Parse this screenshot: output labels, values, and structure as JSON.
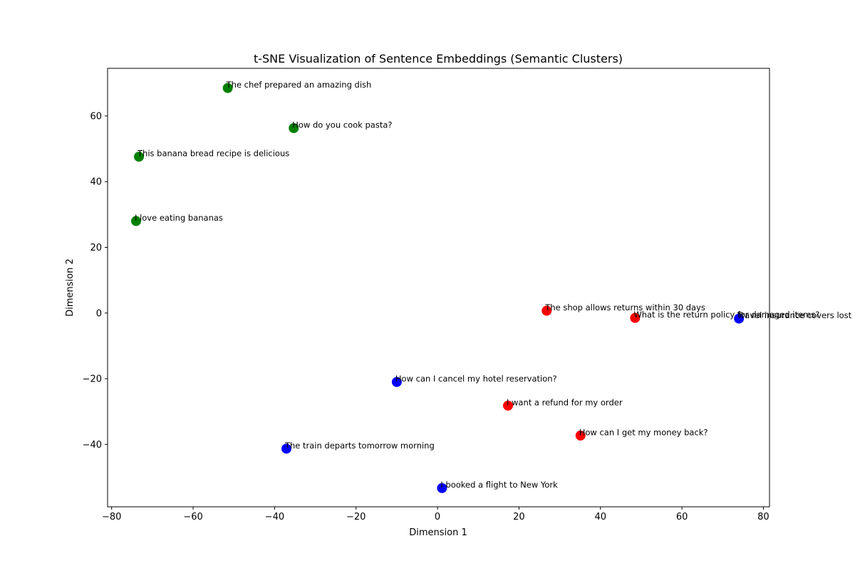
{
  "chart_data": {
    "type": "scatter",
    "title": "t-SNE Visualization of Sentence Embeddings (Semantic Clusters)",
    "xlabel": "Dimension 1",
    "ylabel": "Dimension 2",
    "xlim": [
      -81,
      81.5
    ],
    "ylim": [
      -59,
      74.5
    ],
    "xticks": [
      -80,
      -60,
      -40,
      -20,
      0,
      20,
      40,
      60,
      80
    ],
    "yticks": [
      -40,
      -20,
      0,
      20,
      40,
      60
    ],
    "xtick_labels": [
      "−80",
      "−60",
      "−40",
      "−20",
      "0",
      "20",
      "40",
      "60",
      "80"
    ],
    "ytick_labels": [
      "−40",
      "−20",
      "0",
      "20",
      "40",
      "60"
    ],
    "grid": false,
    "colors": {
      "green": "#008000",
      "red": "#ff0000",
      "blue": "#0000ff"
    },
    "points": [
      {
        "x": -51.5,
        "y": 68.5,
        "color": "#008000",
        "label": "The chef prepared an amazing dish"
      },
      {
        "x": -35.3,
        "y": 56.3,
        "color": "#008000",
        "label": "How do you cook pasta?"
      },
      {
        "x": -73.3,
        "y": 47.6,
        "color": "#008000",
        "label": "This banana bread recipe is delicious"
      },
      {
        "x": -74.0,
        "y": 28.0,
        "color": "#008000",
        "label": "I love eating bananas"
      },
      {
        "x": 26.8,
        "y": 0.7,
        "color": "#ff0000",
        "label": "The shop allows returns within 30 days"
      },
      {
        "x": 48.5,
        "y": -1.5,
        "color": "#ff0000",
        "label": "What is the return policy for damaged items?"
      },
      {
        "x": 74.0,
        "y": -1.7,
        "color": "#0000ff",
        "label": "Travel insurance covers lost luggage"
      },
      {
        "x": -10.0,
        "y": -21.0,
        "color": "#0000ff",
        "label": "How can I cancel my hotel reservation?"
      },
      {
        "x": 17.3,
        "y": -28.2,
        "color": "#ff0000",
        "label": "I want a refund for my order"
      },
      {
        "x": 35.1,
        "y": -37.3,
        "color": "#ff0000",
        "label": "How can I get my money back?"
      },
      {
        "x": -37.1,
        "y": -41.3,
        "color": "#0000ff",
        "label": "The train departs tomorrow morning"
      },
      {
        "x": 1.1,
        "y": -53.3,
        "color": "#0000ff",
        "label": "I booked a flight to New York"
      }
    ]
  }
}
